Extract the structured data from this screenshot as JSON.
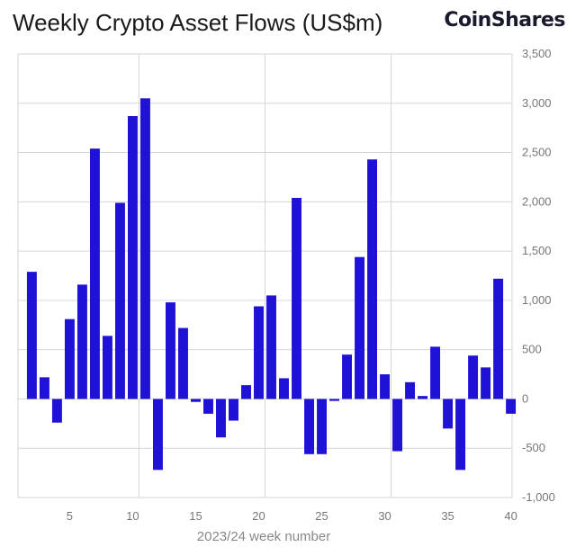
{
  "header": {
    "title": "Weekly Crypto Asset Flows (US$m)",
    "brand": "CoinShares"
  },
  "chart_data": {
    "type": "bar",
    "title": "Weekly Crypto Asset Flows (US$m)",
    "xlabel": "2023/24 week number",
    "ylabel": "",
    "xlim": [
      1,
      40
    ],
    "ylim": [
      -1000,
      3500
    ],
    "yticks": [
      -1000,
      -500,
      0,
      500,
      1000,
      1500,
      2000,
      2500,
      3000,
      3500
    ],
    "ytick_labels": [
      "-1,000",
      "-500",
      "0",
      "500",
      "1,000",
      "1,500",
      "2,000",
      "2,500",
      "3,000",
      "3,500"
    ],
    "xticks": [
      5,
      10,
      15,
      20,
      25,
      30,
      35,
      40
    ],
    "xtick_labels": [
      "5",
      "10",
      "15",
      "20",
      "25",
      "30",
      "35",
      "40"
    ],
    "grid": true,
    "bar_color": "#1f12d6",
    "x": [
      2,
      3,
      4,
      5,
      6,
      7,
      8,
      9,
      10,
      11,
      12,
      13,
      14,
      15,
      16,
      17,
      18,
      19,
      20,
      21,
      22,
      23,
      24,
      25,
      26,
      27,
      28,
      29,
      30,
      31,
      32,
      33,
      34,
      35,
      36,
      37,
      38,
      39,
      40
    ],
    "values": [
      1290,
      220,
      -240,
      810,
      1160,
      2540,
      640,
      1990,
      2870,
      3050,
      -720,
      980,
      720,
      -30,
      -150,
      -390,
      -220,
      140,
      940,
      1050,
      210,
      2040,
      -560,
      -560,
      -20,
      450,
      1440,
      2430,
      250,
      -530,
      170,
      30,
      530,
      -300,
      -720,
      440,
      320,
      1220,
      -150
    ]
  }
}
